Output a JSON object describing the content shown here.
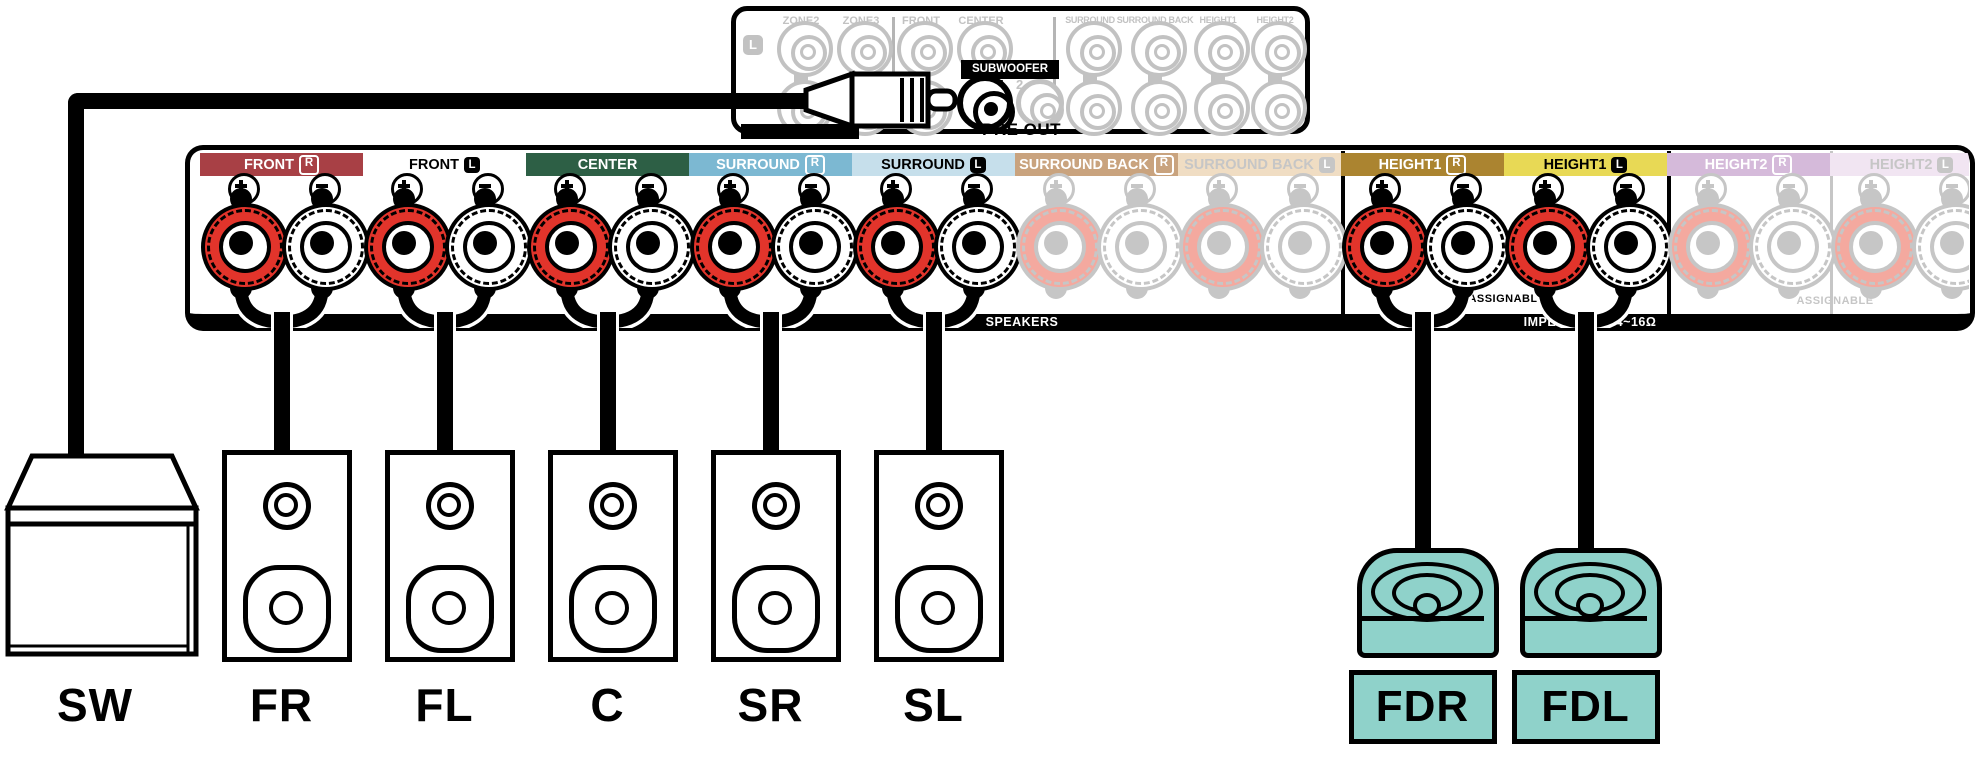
{
  "pre_out": {
    "section_label": "PRE OUT",
    "row_badge": "L",
    "jacks": [
      "ZONE2",
      "ZONE3",
      "FRONT",
      "CENTER",
      "SURROUND",
      "SURROUND BACK",
      "HEIGHT1",
      "HEIGHT2"
    ],
    "subwoofer": {
      "label": "SUBWOOFER",
      "jack_numbers": [
        "1",
        "2"
      ]
    }
  },
  "speaker_panel": {
    "section_label": "SPEAKERS",
    "impedance_label": "IMPEDANCE : 4~16Ω",
    "assignable_label_height1": "ASSIGNABLE",
    "assignable_label_height2": "ASSIGNABLE",
    "terminals": [
      {
        "name": "FRONT",
        "channel": "R",
        "bg": "#a84045",
        "fg": "#ffffff",
        "badge": "outline",
        "connected": true
      },
      {
        "name": "FRONT",
        "channel": "L",
        "bg": "",
        "fg": "#000000",
        "badge": "filled",
        "connected": true
      },
      {
        "name": "CENTER",
        "channel": "",
        "bg": "#2d5f45",
        "fg": "#ffffff",
        "badge": "",
        "connected": true
      },
      {
        "name": "SURROUND",
        "channel": "R",
        "bg": "#7cb8d2",
        "fg": "#ffffff",
        "badge": "outline",
        "connected": true
      },
      {
        "name": "SURROUND",
        "channel": "L",
        "bg": "#c6dfeb",
        "fg": "#000000",
        "badge": "filled",
        "connected": true
      },
      {
        "name": "SURROUND BACK",
        "channel": "R",
        "bg": "#c9a37e",
        "fg": "#ffffff",
        "badge": "outline",
        "connected": false
      },
      {
        "name": "SURROUND BACK",
        "channel": "L",
        "bg": "#f0ddc3",
        "fg": "#c6c6c6",
        "badge": "filled-gray",
        "connected": false
      },
      {
        "name": "HEIGHT1",
        "channel": "R",
        "bg": "#ab8430",
        "fg": "#ffffff",
        "badge": "outline",
        "connected": true
      },
      {
        "name": "HEIGHT1",
        "channel": "L",
        "bg": "#e8d955",
        "fg": "#000000",
        "badge": "filled",
        "connected": true
      },
      {
        "name": "HEIGHT2",
        "channel": "R",
        "bg": "#d5bada",
        "fg": "#ffffff",
        "badge": "outline",
        "connected": false
      },
      {
        "name": "HEIGHT2",
        "channel": "L",
        "bg": "#f1e5f2",
        "fg": "#c6c6c6",
        "badge": "filled-gray",
        "connected": false
      }
    ]
  },
  "speakers": {
    "subwoofer_label": "SW",
    "floor": [
      "FR",
      "FL",
      "C",
      "SR",
      "SL"
    ],
    "height": [
      "FDR",
      "FDL"
    ]
  },
  "colors": {
    "post_red": "#e2342b",
    "inactive_gray": "#c6c6c6",
    "inactive_pink": "#f4a99f",
    "height_speaker_teal": "#8fd2ca"
  }
}
